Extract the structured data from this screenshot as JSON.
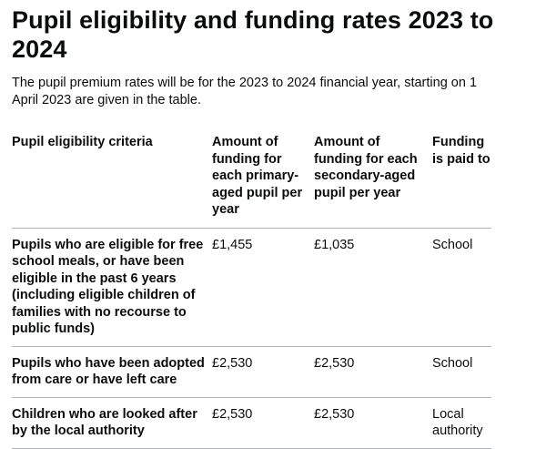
{
  "page": {
    "title": "Pupil eligibility and funding rates 2023 to 2024",
    "intro": "The pupil premium rates will be for the 2023 to 2024 financial year, starting on 1 April 2023 are given in the table."
  },
  "table": {
    "headers": {
      "criteria": "Pupil eligibility criteria",
      "primary": "Amount of funding for each primary-aged pupil per year",
      "secondary": "Amount of funding for each secondary-aged pupil per year",
      "paid_to": "Funding is paid to"
    },
    "rows": [
      {
        "criteria": "Pupils who are eligible for free school meals, or have been eligible in the past 6 years (including eligible children of families with no recourse to public funds)",
        "primary": "£1,455",
        "secondary": "£1,035",
        "paid_to": "School"
      },
      {
        "criteria": "Pupils who have been adopted from care or have left care",
        "primary": "£2,530",
        "secondary": "£2,530",
        "paid_to": "School"
      },
      {
        "criteria": "Children who are looked after by the local authority",
        "primary": "£2,530",
        "secondary": "£2,530",
        "paid_to": "Local authority"
      }
    ]
  }
}
